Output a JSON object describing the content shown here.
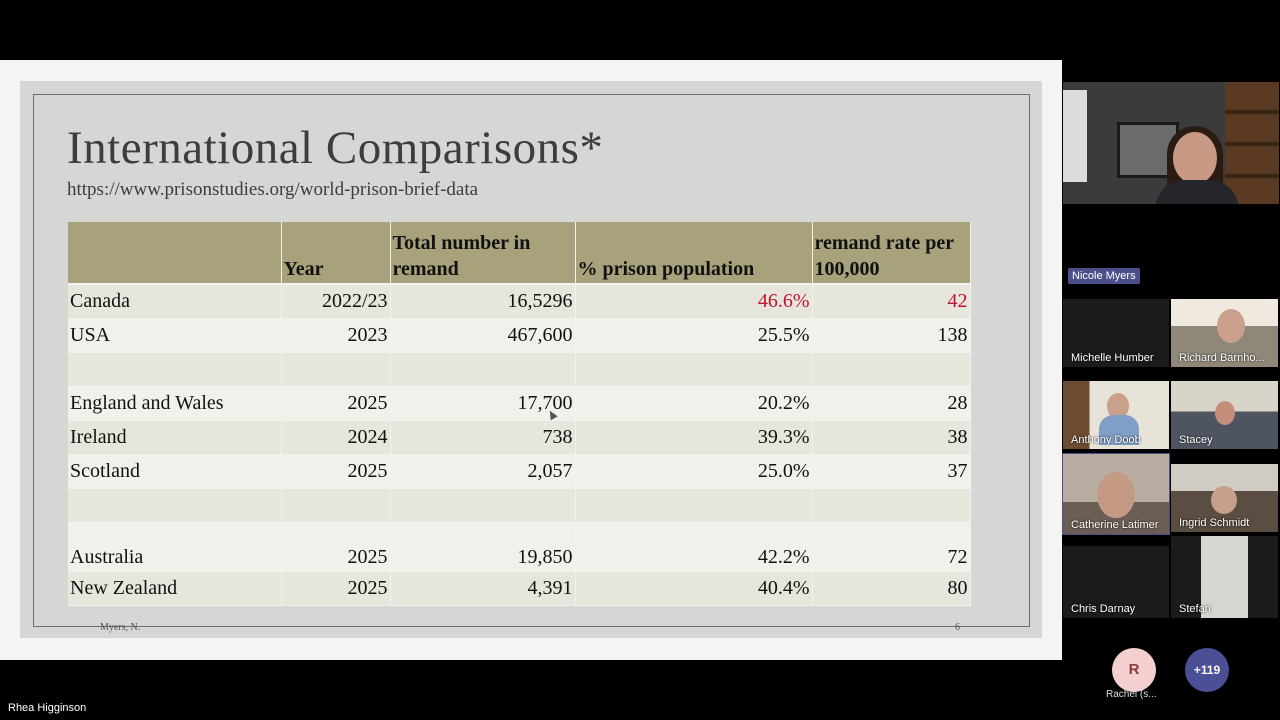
{
  "slide": {
    "title": "International Comparisons*",
    "url": "https://www.prisonstudies.org/world-prison-brief-data",
    "footer_author": "Myers, N.",
    "page_number": "6",
    "accent_color": "#c0142e",
    "header_color": "#a7a17c"
  },
  "table": {
    "headers": [
      "",
      "Year",
      "Total number in remand",
      "% prison population",
      "remand rate per 100,000"
    ],
    "rows": [
      {
        "country": "Canada",
        "year": "2022/23",
        "total": "16,5296",
        "pct": "46.6%",
        "rate": "42",
        "highlight": true
      },
      {
        "country": "USA",
        "year": "2023",
        "total": "467,600",
        "pct": "25.5%",
        "rate": "138"
      },
      {
        "country": "",
        "year": "",
        "total": "",
        "pct": "",
        "rate": ""
      },
      {
        "country": "England and Wales",
        "year": "2025",
        "total": "17,700",
        "pct": "20.2%",
        "rate": "28"
      },
      {
        "country": "Ireland",
        "year": "2024",
        "total": "738",
        "pct": "39.3%",
        "rate": "38"
      },
      {
        "country": "Scotland",
        "year": "2025",
        "total": "2,057",
        "pct": "25.0%",
        "rate": "37"
      },
      {
        "country": "",
        "year": "",
        "total": "",
        "pct": "",
        "rate": ""
      },
      {
        "country": "Australia",
        "year": "2025",
        "total": "19,850",
        "pct": "42.2%",
        "rate": "72"
      },
      {
        "country": "New Zealand",
        "year": "2025",
        "total": "4,391",
        "pct": "40.4%",
        "rate": "80"
      }
    ]
  },
  "meeting": {
    "active_speaker": "Nicole Myers",
    "participants": [
      {
        "name": "Michelle Humber"
      },
      {
        "name": "Richard Barnho..."
      },
      {
        "name": "Anthony Doob"
      },
      {
        "name": "Stacey"
      },
      {
        "name": "Catherine Latimer"
      },
      {
        "name": "Ingrid Schmidt"
      },
      {
        "name": "Chris Darnay"
      },
      {
        "name": "Stefan"
      }
    ],
    "avatar_initial": "R",
    "avatar_name": "Rachel (s...",
    "more_count": "+119",
    "bottom_name": "Rhea Higginson"
  }
}
